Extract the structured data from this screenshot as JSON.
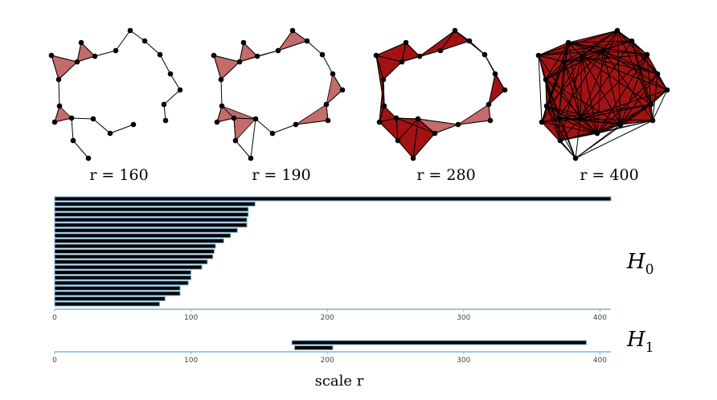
{
  "chart_data": [
    {
      "type": "diagram",
      "panels": [
        {
          "label": "r = 160"
        },
        {
          "label": "r = 190"
        },
        {
          "label": "r = 280"
        },
        {
          "label": "r = 400"
        }
      ],
      "colors": {
        "light_fill": "#c46b6b",
        "dark_fill": "#a31212",
        "vertex": "#000000",
        "edge": "#000000"
      }
    },
    {
      "type": "barcode",
      "xlabel": "scale r",
      "xlim": [
        0,
        408
      ],
      "xticks": [
        0,
        100,
        200,
        300,
        400
      ],
      "bar_color": "#000000",
      "bar_outline": "#7fb3d5",
      "axis_color": "#7fb3d5",
      "groups": [
        {
          "name": "H0",
          "label_main": "H",
          "label_sub": "0",
          "bars": [
            [
              0,
              408
            ],
            [
              0,
              147
            ],
            [
              0,
              142
            ],
            [
              0,
              142
            ],
            [
              0,
              141
            ],
            [
              0,
              141
            ],
            [
              0,
              134
            ],
            [
              0,
              129
            ],
            [
              0,
              124
            ],
            [
              0,
              118
            ],
            [
              0,
              117
            ],
            [
              0,
              116
            ],
            [
              0,
              112
            ],
            [
              0,
              108
            ],
            [
              0,
              100
            ],
            [
              0,
              100
            ],
            [
              0,
              98
            ],
            [
              0,
              92
            ],
            [
              0,
              92
            ],
            [
              0,
              81
            ],
            [
              0,
              77
            ]
          ]
        },
        {
          "name": "H1",
          "label_main": "H",
          "label_sub": "1",
          "bars": [
            [
              174,
              390
            ],
            [
              176,
              204
            ]
          ]
        }
      ]
    }
  ]
}
